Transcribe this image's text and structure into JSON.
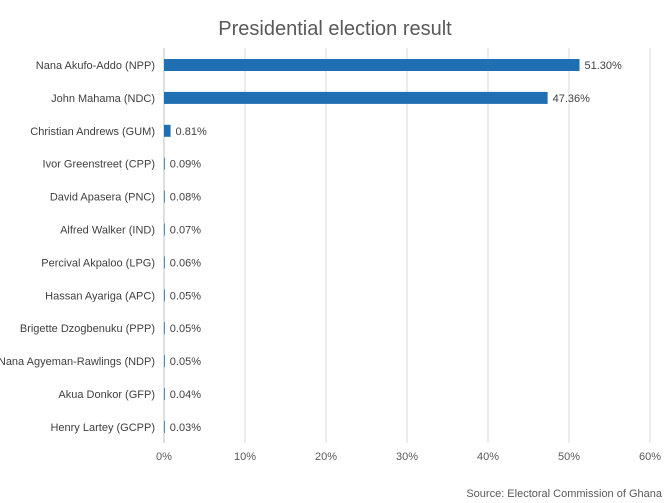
{
  "chart_data": {
    "type": "bar",
    "orientation": "horizontal",
    "title": "Presidential election result",
    "categories": [
      "Nana Akufo-Addo (NPP)",
      "John Mahama (NDC)",
      "Christian Andrews (GUM)",
      "Ivor Greenstreet (CPP)",
      "David Apasera (PNC)",
      "Alfred Walker (IND)",
      "Percival Akpaloo (LPG)",
      "Hassan Ayariga (APC)",
      "Brigette Dzogbenuku (PPP)",
      "Nana Agyeman-Rawlings (NDP)",
      "Akua Donkor (GFP)",
      "Henry Lartey (GCPP)"
    ],
    "values": [
      51.3,
      47.36,
      0.81,
      0.09,
      0.08,
      0.07,
      0.06,
      0.05,
      0.05,
      0.05,
      0.04,
      0.03
    ],
    "data_labels": [
      "51.30%",
      "47.36%",
      "0.81%",
      "0.09%",
      "0.08%",
      "0.07%",
      "0.06%",
      "0.05%",
      "0.05%",
      "0.05%",
      "0.04%",
      "0.03%"
    ],
    "xlim": [
      0,
      60
    ],
    "x_ticks": [
      0,
      10,
      20,
      30,
      40,
      50,
      60
    ],
    "x_tick_labels": [
      "0%",
      "10%",
      "20%",
      "30%",
      "40%",
      "50%",
      "60%"
    ],
    "xlabel": "",
    "ylabel": "",
    "grid": "vertical",
    "legend": "none",
    "bar_color": "#1f6fb2",
    "source": "Source: Electoral Commission of Ghana"
  }
}
